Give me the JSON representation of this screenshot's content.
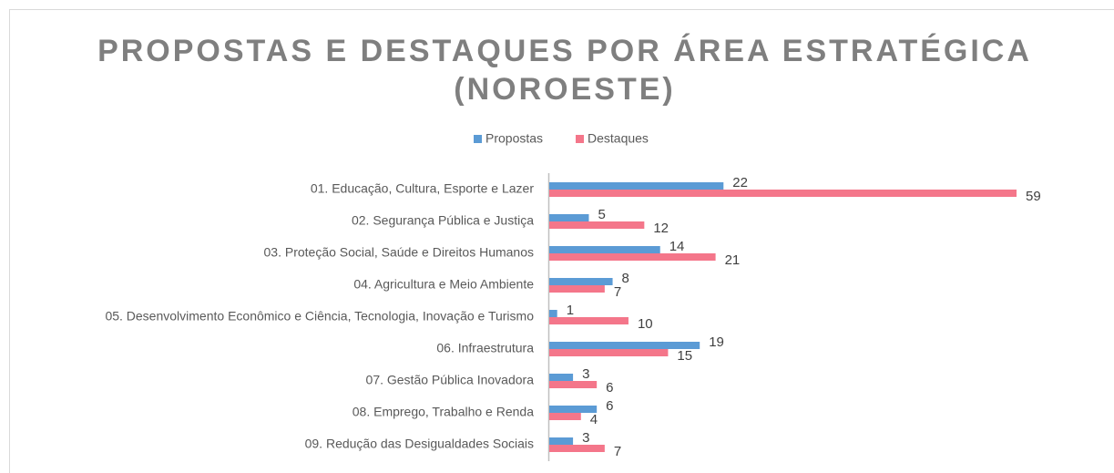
{
  "chart_data": {
    "type": "hbar",
    "title": [
      "PROPOSTAS E DESTAQUES POR ÁREA ESTRATÉGICA",
      "(NOROESTE)"
    ],
    "categories": [
      "01. Educação, Cultura, Esporte e Lazer",
      "02. Segurança  Pública e Justiça",
      "03. Proteção Social, Saúde e Direitos Humanos",
      "04. Agricultura e Meio Ambiente",
      "05. Desenvolvimento Econômico e Ciência, Tecnologia, Inovação e Turismo",
      "06. Infraestrutura",
      "07. Gestão Pública Inovadora",
      "08. Emprego, Trabalho e Renda",
      "09. Redução das Desigualdades Sociais"
    ],
    "series": [
      {
        "name": "Propostas",
        "color": "#5b9bd5",
        "values": [
          22,
          5,
          14,
          8,
          1,
          19,
          3,
          6,
          3
        ]
      },
      {
        "name": "Destaques",
        "color": "#f4768a",
        "values": [
          59,
          12,
          21,
          7,
          10,
          15,
          6,
          4,
          7
        ]
      }
    ],
    "legend": "top"
  }
}
